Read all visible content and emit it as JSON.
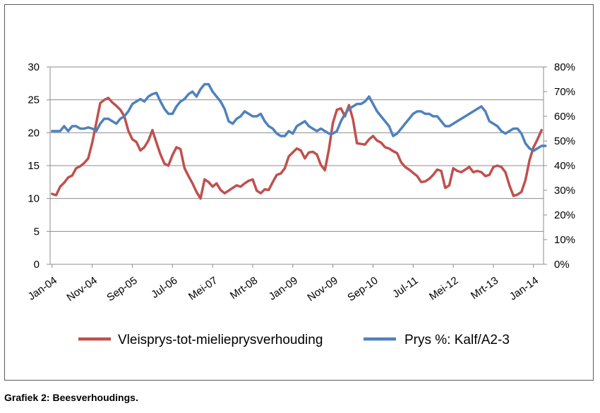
{
  "caption": "Grafiek 2: Beesverhoudings.",
  "chart_data": {
    "type": "line",
    "title": "",
    "xlabel": "",
    "ylabel_left": "",
    "ylabel_right": "",
    "x_tick_labels": [
      "Jan-04",
      "Nov-04",
      "Sep-05",
      "Jul-06",
      "Mei-07",
      "Mrt-08",
      "Jan-09",
      "Nov-09",
      "Sep-10",
      "Jul-11",
      "Mei-12",
      "Mrt-13",
      "Jan-14"
    ],
    "x_tick_step_months": 10,
    "n_months": 123,
    "y_left": {
      "range": [
        0,
        30
      ],
      "ticks": [
        "0",
        "5",
        "10",
        "15",
        "20",
        "25",
        "30"
      ]
    },
    "y_right": {
      "range": [
        0,
        0.8
      ],
      "ticks": [
        "0%",
        "10%",
        "20%",
        "30%",
        "40%",
        "50%",
        "60%",
        "70%",
        "80%"
      ]
    },
    "grid": "horizontal",
    "legend": "bottom",
    "colors": {
      "series1": "#c0504d",
      "series2": "#4f81bd",
      "grid": "#8c8c8c",
      "axis": "#8c8c8c"
    },
    "series": [
      {
        "name": "Vleisprys-tot-mielieprysverhouding",
        "axis": "left",
        "values": [
          10.7,
          10.5,
          11.8,
          12.4,
          13.2,
          13.5,
          14.6,
          14.9,
          15.4,
          16.1,
          18.5,
          21.5,
          24.5,
          25.0,
          25.3,
          24.6,
          24.1,
          23.5,
          22.5,
          20.3,
          19.0,
          18.6,
          17.3,
          17.8,
          18.8,
          20.4,
          18.5,
          16.7,
          15.3,
          15.0,
          16.6,
          17.8,
          17.5,
          14.6,
          13.4,
          12.3,
          11.0,
          10.0,
          12.9,
          12.5,
          11.8,
          12.3,
          11.3,
          10.8,
          11.2,
          11.6,
          12.0,
          11.8,
          12.3,
          12.7,
          12.9,
          11.2,
          10.8,
          11.4,
          11.3,
          12.5,
          13.6,
          13.8,
          14.6,
          16.4,
          17.0,
          17.6,
          17.3,
          16.1,
          17.0,
          17.1,
          16.7,
          15.1,
          14.3,
          17.5,
          21.5,
          23.5,
          23.7,
          22.5,
          24.2,
          22.0,
          18.4,
          18.3,
          18.2,
          19.0,
          19.5,
          18.8,
          18.5,
          17.8,
          17.6,
          17.2,
          16.9,
          15.5,
          14.8,
          14.4,
          13.9,
          13.4,
          12.5,
          12.6,
          13.0,
          13.6,
          14.4,
          14.2,
          11.6,
          12.0,
          14.6,
          14.2,
          14.0,
          14.4,
          14.8,
          14.0,
          14.2,
          14.0,
          13.4,
          13.6,
          14.8,
          15.0,
          14.8,
          14.0,
          12.0,
          10.4,
          10.6,
          11.0,
          12.8,
          15.8,
          17.8,
          19.0,
          20.4
        ]
      },
      {
        "name": "Prys %: Kalf/A2-3",
        "axis": "right",
        "values": [
          0.54,
          0.54,
          0.54,
          0.56,
          0.54,
          0.56,
          0.56,
          0.55,
          0.55,
          0.555,
          0.55,
          0.54,
          0.57,
          0.59,
          0.59,
          0.58,
          0.57,
          0.59,
          0.6,
          0.62,
          0.65,
          0.66,
          0.67,
          0.66,
          0.68,
          0.69,
          0.695,
          0.66,
          0.63,
          0.61,
          0.61,
          0.64,
          0.66,
          0.67,
          0.69,
          0.7,
          0.68,
          0.71,
          0.73,
          0.73,
          0.7,
          0.68,
          0.66,
          0.63,
          0.58,
          0.57,
          0.59,
          0.6,
          0.62,
          0.61,
          0.6,
          0.6,
          0.61,
          0.58,
          0.56,
          0.55,
          0.53,
          0.52,
          0.52,
          0.54,
          0.53,
          0.56,
          0.57,
          0.58,
          0.56,
          0.55,
          0.54,
          0.55,
          0.54,
          0.53,
          0.53,
          0.54,
          0.58,
          0.61,
          0.63,
          0.64,
          0.65,
          0.65,
          0.66,
          0.68,
          0.65,
          0.62,
          0.6,
          0.58,
          0.56,
          0.52,
          0.53,
          0.55,
          0.57,
          0.59,
          0.61,
          0.62,
          0.62,
          0.61,
          0.61,
          0.6,
          0.6,
          0.58,
          0.56,
          0.56,
          0.57,
          0.58,
          0.59,
          0.6,
          0.61,
          0.62,
          0.63,
          0.64,
          0.62,
          0.58,
          0.57,
          0.56,
          0.54,
          0.53,
          0.54,
          0.55,
          0.55,
          0.53,
          0.49,
          0.47,
          0.46,
          0.47,
          0.48,
          0.48
        ]
      }
    ]
  }
}
